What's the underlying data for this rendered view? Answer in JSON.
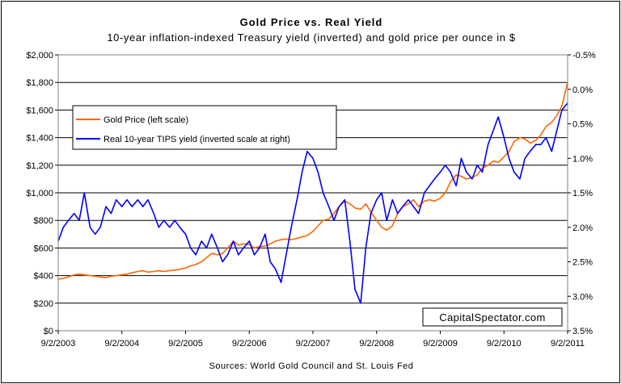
{
  "chart_data": {
    "type": "line",
    "title": "Gold Price vs. Real Yield",
    "subtitle": "10-year inflation-indexed Treasury yield (inverted) and gold price per ounce in $",
    "source": "Sources: World Gold Council and St. Louis Fed",
    "watermark": "CapitalSpectator.com",
    "grid": true,
    "legend_position": "upper-left",
    "x_ticks": [
      "9/2/2003",
      "9/2/2004",
      "9/2/2005",
      "9/2/2006",
      "9/2/2007",
      "9/2/2008",
      "9/2/2009",
      "9/2/2010",
      "9/2/2011"
    ],
    "y_left": {
      "ticks": [
        "$0",
        "$200",
        "$400",
        "$600",
        "$800",
        "$1,000",
        "$1,200",
        "$1,400",
        "$1,600",
        "$1,800",
        "$2,000"
      ],
      "range": [
        0,
        2000
      ]
    },
    "y_right": {
      "inverted": true,
      "ticks": [
        "-0.5%",
        "0.0%",
        "0.5%",
        "1.0%",
        "1.5%",
        "2.0%",
        "2.5%",
        "3.0%",
        "3.5%"
      ],
      "range": [
        -0.5,
        3.5
      ]
    },
    "x": [
      2003.67,
      2003.75,
      2003.83,
      2003.92,
      2004.0,
      2004.08,
      2004.17,
      2004.25,
      2004.33,
      2004.42,
      2004.5,
      2004.58,
      2004.67,
      2004.75,
      2004.83,
      2004.92,
      2005.0,
      2005.08,
      2005.17,
      2005.25,
      2005.33,
      2005.42,
      2005.5,
      2005.58,
      2005.67,
      2005.75,
      2005.83,
      2005.92,
      2006.0,
      2006.08,
      2006.17,
      2006.25,
      2006.33,
      2006.42,
      2006.5,
      2006.58,
      2006.67,
      2006.75,
      2006.83,
      2006.92,
      2007.0,
      2007.08,
      2007.17,
      2007.25,
      2007.33,
      2007.42,
      2007.5,
      2007.58,
      2007.67,
      2007.75,
      2007.83,
      2007.92,
      2008.0,
      2008.08,
      2008.17,
      2008.25,
      2008.33,
      2008.42,
      2008.5,
      2008.58,
      2008.67,
      2008.75,
      2008.83,
      2008.92,
      2009.0,
      2009.08,
      2009.17,
      2009.25,
      2009.33,
      2009.42,
      2009.5,
      2009.58,
      2009.67,
      2009.75,
      2009.83,
      2009.92,
      2010.0,
      2010.08,
      2010.17,
      2010.25,
      2010.33,
      2010.42,
      2010.5,
      2010.58,
      2010.67,
      2010.75,
      2010.83,
      2010.92,
      2011.0,
      2011.08,
      2011.17,
      2011.25,
      2011.33,
      2011.42,
      2011.5,
      2011.58,
      2011.67
    ],
    "series": [
      {
        "name": "Gold Price (left scale)",
        "axis": "left",
        "color": "#ff6600",
        "values": [
          375,
          380,
          390,
          405,
          410,
          405,
          400,
          395,
          390,
          385,
          395,
          400,
          405,
          410,
          420,
          430,
          435,
          425,
          430,
          435,
          430,
          435,
          440,
          445,
          455,
          470,
          480,
          500,
          530,
          560,
          550,
          560,
          600,
          650,
          620,
          630,
          625,
          600,
          610,
          615,
          630,
          650,
          660,
          665,
          660,
          670,
          680,
          690,
          720,
          760,
          800,
          810,
          850,
          900,
          940,
          920,
          890,
          880,
          920,
          860,
          800,
          750,
          730,
          760,
          850,
          900,
          920,
          950,
          900,
          940,
          950,
          940,
          960,
          1000,
          1080,
          1130,
          1120,
          1100,
          1110,
          1130,
          1180,
          1200,
          1230,
          1220,
          1260,
          1300,
          1370,
          1400,
          1390,
          1360,
          1380,
          1420,
          1480,
          1510,
          1560,
          1630,
          1800
        ]
      },
      {
        "name": "Real 10-year TIPS yield (inverted scale at right)",
        "axis": "right",
        "color": "#0000ff",
        "values": [
          2.2,
          2.0,
          1.9,
          1.8,
          1.9,
          1.5,
          2.0,
          2.1,
          2.0,
          1.7,
          1.8,
          1.6,
          1.7,
          1.6,
          1.7,
          1.6,
          1.7,
          1.6,
          1.8,
          2.0,
          1.9,
          2.0,
          1.9,
          2.0,
          2.1,
          2.3,
          2.4,
          2.2,
          2.3,
          2.1,
          2.3,
          2.5,
          2.4,
          2.2,
          2.4,
          2.3,
          2.2,
          2.4,
          2.3,
          2.1,
          2.5,
          2.6,
          2.8,
          2.4,
          2.0,
          1.6,
          1.2,
          0.9,
          1.0,
          1.2,
          1.5,
          1.7,
          1.9,
          1.7,
          1.6,
          2.2,
          2.9,
          3.1,
          2.3,
          1.8,
          1.6,
          1.5,
          1.9,
          1.6,
          1.8,
          1.7,
          1.6,
          1.7,
          1.8,
          1.5,
          1.4,
          1.3,
          1.2,
          1.1,
          1.2,
          1.4,
          1.0,
          1.2,
          1.3,
          1.1,
          1.2,
          0.8,
          0.6,
          0.4,
          0.7,
          1.0,
          1.2,
          1.3,
          1.0,
          0.9,
          0.8,
          0.8,
          0.7,
          0.9,
          0.6,
          0.3,
          0.2
        ]
      }
    ]
  }
}
